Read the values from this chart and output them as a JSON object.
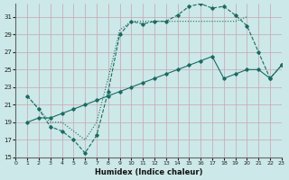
{
  "xlabel": "Humidex (Indice chaleur)",
  "bg_color": "#cce8e8",
  "grid_color": "#c8a4b0",
  "line_color": "#1a6b60",
  "xlim": [
    0,
    23
  ],
  "ylim": [
    15,
    32.5
  ],
  "xticks": [
    0,
    1,
    2,
    3,
    4,
    5,
    6,
    7,
    8,
    9,
    10,
    11,
    12,
    13,
    14,
    15,
    16,
    17,
    18,
    19,
    20,
    21,
    22,
    23
  ],
  "yticks": [
    15,
    17,
    19,
    21,
    23,
    25,
    27,
    29,
    31
  ],
  "curve_dotted_x": [
    1,
    2,
    3,
    4,
    5,
    6,
    7,
    8,
    9,
    10,
    11,
    12,
    13,
    14,
    15,
    16,
    17,
    18,
    19,
    20
  ],
  "curve_dotted_y": [
    22,
    20.5,
    19,
    19,
    18,
    17,
    19,
    24,
    29.5,
    30.5,
    30.5,
    30.5,
    30.5,
    30.5,
    30.5,
    30.5,
    30.5,
    30.5,
    30.5,
    31
  ],
  "curve_dashed_x": [
    1,
    2,
    3,
    4,
    5,
    6,
    7,
    8,
    9,
    10,
    11,
    12,
    13,
    14,
    15,
    16,
    17,
    18,
    19,
    20,
    21,
    22,
    23
  ],
  "curve_dashed_y": [
    22,
    20.5,
    18.5,
    18,
    17,
    15.5,
    17.5,
    22.5,
    29,
    30.5,
    30.2,
    30.5,
    30.5,
    31.2,
    32.2,
    32.5,
    32,
    32.2,
    31.2,
    30,
    27,
    24,
    25.5
  ],
  "curve_solid_x": [
    1,
    2,
    3,
    4,
    5,
    6,
    7,
    8,
    9,
    10,
    11,
    12,
    13,
    14,
    15,
    16,
    17,
    18,
    19,
    20,
    21,
    22,
    23
  ],
  "curve_solid_y": [
    19,
    19.5,
    19.5,
    20,
    20.5,
    21,
    21.5,
    22,
    22.5,
    23,
    23.5,
    24,
    24.5,
    25,
    25.5,
    26,
    26.5,
    24,
    24.5,
    25,
    25,
    24,
    25.5
  ]
}
